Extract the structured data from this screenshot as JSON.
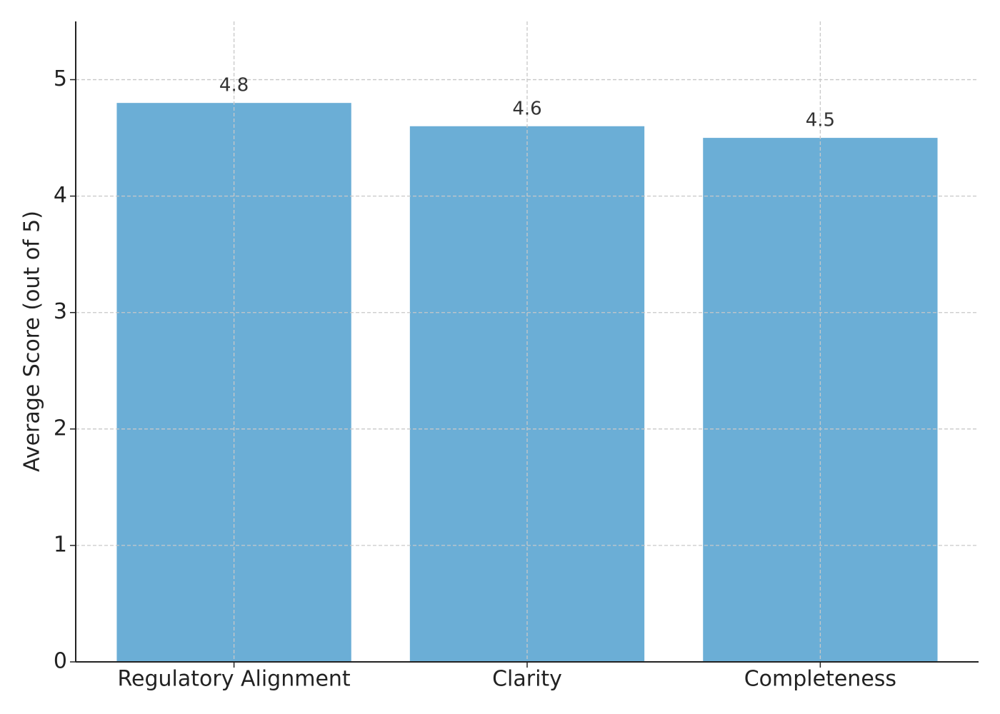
{
  "chart_data": {
    "type": "bar",
    "y_label": "Average Score (out of 5)",
    "categories": [
      "Regulatory Alignment",
      "Clarity",
      "Completeness"
    ],
    "values": [
      4.8,
      4.6,
      4.5
    ],
    "color": "#6baed6",
    "ylim": [
      0,
      5.5
    ],
    "yticks": [
      0,
      1,
      2,
      3,
      4,
      5
    ],
    "grid": true
  }
}
